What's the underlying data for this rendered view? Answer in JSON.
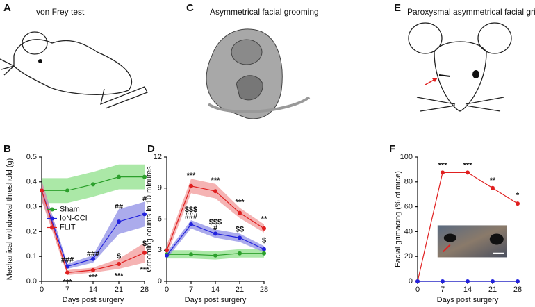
{
  "illustrations": [
    {
      "letter": "A",
      "title": "von Frey test"
    },
    {
      "letter": "C",
      "title": "Asymmetrical facial grooming"
    },
    {
      "letter": "E",
      "title": "Paroxysmal asymmetrical facial grimacing"
    }
  ],
  "chart_data": [
    {
      "type": "line",
      "panel_label": "B",
      "xlabel": "Days post surgery",
      "ylabel": "Mechanical withdrawal threshold (g)",
      "x": [
        0,
        7,
        14,
        21,
        28
      ],
      "xlim": [
        0,
        28
      ],
      "xticks": [
        0,
        7,
        14,
        21,
        28
      ],
      "ylim": [
        0,
        0.5
      ],
      "yticks": [
        {
          "value": 0,
          "label": "0.0"
        },
        0.1,
        0.2,
        0.3,
        0.4,
        0.5
      ],
      "legend": "center left",
      "series": [
        {
          "name": "Sham",
          "color": "#2ca02c",
          "band_color": "#8fe08a",
          "values": [
            0.365,
            0.365,
            0.39,
            0.42,
            0.42
          ],
          "error": [
            0.05,
            0.05,
            0.05,
            0.05,
            0.05
          ]
        },
        {
          "name": "IoN-CCI",
          "color": "#2222dd",
          "band_color": "#8f8fe6",
          "values": [
            0.365,
            0.06,
            0.09,
            0.24,
            0.27
          ],
          "error": [
            0.04,
            0.01,
            0.015,
            0.05,
            0.05
          ]
        },
        {
          "name": "FLIT",
          "color": "#e02020",
          "band_color": "#f29a9a",
          "values": [
            0.365,
            0.035,
            0.045,
            0.07,
            0.115
          ],
          "error": [
            0.04,
            0.01,
            0.01,
            0.02,
            0.04
          ]
        }
      ],
      "annotations": [
        {
          "text": "###",
          "x": 7,
          "y": 0.085
        },
        {
          "text": "***",
          "x": 7,
          "y": -0.005
        },
        {
          "text": "###",
          "x": 14,
          "y": 0.11
        },
        {
          "text": "***",
          "x": 14,
          "y": 0.015
        },
        {
          "text": "##",
          "x": 21,
          "y": 0.3
        },
        {
          "text": "$",
          "x": 21,
          "y": 0.1
        },
        {
          "text": "***",
          "x": 21,
          "y": 0.02
        },
        {
          "text": "#",
          "x": 28,
          "y": 0.33
        },
        {
          "text": "$",
          "x": 28,
          "y": 0.15
        },
        {
          "text": "***",
          "x": 28,
          "y": 0.045
        }
      ]
    },
    {
      "type": "line",
      "panel_label": "D",
      "xlabel": "Days post surgery",
      "ylabel": "Grooming counts in 10 minutes",
      "x": [
        0,
        7,
        14,
        21,
        28
      ],
      "xlim": [
        0,
        28
      ],
      "xticks": [
        0,
        7,
        14,
        21,
        28
      ],
      "ylim": [
        0,
        12
      ],
      "yticks": [
        0,
        3,
        6,
        9,
        12
      ],
      "series": [
        {
          "color": "#2ca02c",
          "band_color": "#8fe08a",
          "values": [
            2.6,
            2.6,
            2.5,
            2.7,
            2.7
          ],
          "error": [
            0.4,
            0.4,
            0.4,
            0.4,
            0.4
          ]
        },
        {
          "color": "#2222dd",
          "band_color": "#8f8fe6",
          "values": [
            2.5,
            5.5,
            4.6,
            4.2,
            3.1
          ],
          "error": [
            0.3,
            0.4,
            0.4,
            0.4,
            0.3
          ]
        },
        {
          "color": "#e02020",
          "band_color": "#f29a9a",
          "values": [
            3.0,
            9.2,
            8.7,
            6.6,
            5.1
          ],
          "error": [
            0.5,
            0.7,
            0.7,
            0.5,
            0.4
          ]
        }
      ],
      "annotations": [
        {
          "text": "***",
          "x": 7,
          "y": 10.2
        },
        {
          "text": "$$$",
          "x": 7,
          "y": 6.9
        },
        {
          "text": "###",
          "x": 7,
          "y": 6.25
        },
        {
          "text": "***",
          "x": 14,
          "y": 9.7
        },
        {
          "text": "$$$",
          "x": 14,
          "y": 5.7
        },
        {
          "text": "#",
          "x": 14,
          "y": 5.15
        },
        {
          "text": "***",
          "x": 21,
          "y": 7.6
        },
        {
          "text": "$$",
          "x": 21,
          "y": 5.0
        },
        {
          "text": "**",
          "x": 28,
          "y": 6.0
        },
        {
          "text": "$",
          "x": 28,
          "y": 3.9
        }
      ]
    },
    {
      "type": "line",
      "panel_label": "F",
      "xlabel": "Days post surgery",
      "ylabel": "Facial grimacing (% of mice)",
      "x": [
        0,
        7,
        14,
        21,
        28
      ],
      "xlim": [
        0,
        28
      ],
      "xticks": [
        0,
        7,
        14,
        21,
        28
      ],
      "ylim": [
        0,
        100
      ],
      "yticks": [
        0,
        20,
        40,
        60,
        80,
        100
      ],
      "inset": true,
      "series": [
        {
          "color": "#e02020",
          "values": [
            0,
            87.5,
            87.5,
            75,
            62.5
          ]
        },
        {
          "color": "#2222dd",
          "values": [
            0,
            0,
            0,
            0,
            0
          ]
        }
      ],
      "annotations": [
        {
          "text": "***",
          "x": 7,
          "y": 93
        },
        {
          "text": "***",
          "x": 14,
          "y": 93
        },
        {
          "text": "**",
          "x": 21,
          "y": 81
        },
        {
          "text": "*",
          "x": 28,
          "y": 69
        }
      ]
    }
  ]
}
